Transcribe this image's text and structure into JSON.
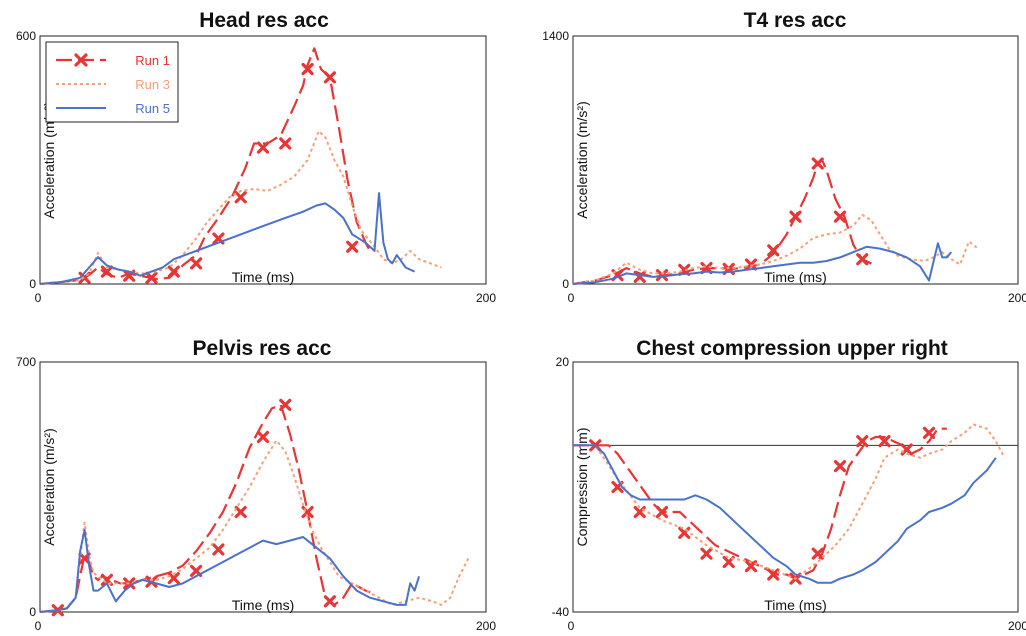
{
  "chart_data": [
    {
      "type": "line",
      "title": "Head res acc",
      "xlabel": "Time (ms)",
      "ylabel": "Acceleration (m/s²)",
      "xlim": [
        0,
        200
      ],
      "ylim": [
        0,
        600
      ],
      "x_ticks": [
        "0",
        "200"
      ],
      "y_ticks": [
        "0",
        "600"
      ],
      "legend": {
        "position": "top-left",
        "entries": [
          "Run 1",
          "Run 3",
          "Run 5"
        ]
      },
      "series": [
        {
          "name": "Run 1",
          "color": "#e83535",
          "style": "long-dash-markers",
          "x": [
            0,
            10,
            18,
            22,
            26,
            30,
            35,
            40,
            45,
            52,
            58,
            64,
            70,
            74,
            80,
            86,
            92,
            96,
            102,
            108,
            114,
            118,
            120,
            123,
            126,
            130,
            134,
            138,
            142,
            146,
            148
          ],
          "y": [
            0,
            5,
            10,
            22,
            40,
            24,
            15,
            25,
            20,
            12,
            15,
            45,
            70,
            115,
            160,
            210,
            280,
            340,
            340,
            360,
            430,
            480,
            530,
            570,
            520,
            500,
            380,
            250,
            150,
            100,
            80
          ],
          "markers_x": [
            20,
            30,
            40,
            50,
            60,
            70,
            80,
            90,
            100,
            110,
            120,
            130,
            140
          ],
          "markers_y": [
            15,
            30,
            20,
            15,
            30,
            50,
            110,
            210,
            330,
            340,
            520,
            500,
            90
          ]
        },
        {
          "name": "Run 3",
          "color": "#f4a07a",
          "style": "dotted",
          "x": [
            0,
            10,
            18,
            22,
            26,
            30,
            35,
            40,
            45,
            52,
            58,
            64,
            70,
            75,
            80,
            85,
            90,
            96,
            102,
            108,
            114,
            120,
            125,
            128,
            132,
            136,
            140,
            144,
            150,
            154,
            158,
            162,
            166,
            170,
            175,
            180
          ],
          "y": [
            0,
            5,
            10,
            25,
            75,
            40,
            35,
            30,
            25,
            30,
            40,
            70,
            110,
            150,
            180,
            210,
            225,
            230,
            225,
            240,
            260,
            300,
            370,
            355,
            300,
            260,
            190,
            130,
            90,
            60,
            50,
            60,
            80,
            60,
            50,
            40
          ],
          "markers_x": [],
          "markers_y": []
        },
        {
          "name": "Run 5",
          "color": "#4a72c8",
          "style": "solid",
          "x": [
            0,
            10,
            18,
            22,
            26,
            30,
            35,
            40,
            45,
            50,
            55,
            60,
            65,
            70,
            80,
            90,
            100,
            110,
            118,
            124,
            128,
            132,
            136,
            140,
            146,
            150,
            152,
            154,
            156,
            158,
            160,
            164,
            168
          ],
          "y": [
            0,
            5,
            15,
            40,
            65,
            45,
            35,
            30,
            20,
            30,
            40,
            60,
            70,
            80,
            100,
            120,
            140,
            160,
            175,
            190,
            195,
            180,
            160,
            120,
            100,
            80,
            220,
            100,
            60,
            50,
            70,
            40,
            30
          ],
          "markers_x": [],
          "markers_y": []
        }
      ]
    },
    {
      "type": "line",
      "title": "T4 res acc",
      "xlabel": "Time (ms)",
      "ylabel": "Acceleration (m/s²)",
      "xlim": [
        0,
        200
      ],
      "ylim": [
        0,
        1400
      ],
      "x_ticks": [
        "0",
        "200"
      ],
      "y_ticks": [
        "0",
        "1400"
      ],
      "series": [
        {
          "name": "Run 1",
          "color": "#e83535",
          "style": "long-dash-markers",
          "x": [
            0,
            10,
            18,
            24,
            30,
            36,
            42,
            48,
            54,
            60,
            66,
            72,
            78,
            84,
            90,
            96,
            100,
            104,
            108,
            110,
            112,
            114,
            118,
            122,
            126,
            130,
            135
          ],
          "y": [
            0,
            20,
            50,
            90,
            60,
            40,
            50,
            60,
            80,
            90,
            90,
            85,
            95,
            110,
            170,
            280,
            380,
            480,
            600,
            680,
            700,
            640,
            480,
            380,
            220,
            140,
            110
          ],
          "markers_x": [
            20,
            30,
            40,
            50,
            60,
            70,
            80,
            90,
            100,
            110,
            120,
            130
          ],
          "markers_y": [
            50,
            40,
            50,
            80,
            90,
            85,
            110,
            190,
            380,
            680,
            380,
            140
          ]
        },
        {
          "name": "Run 3",
          "color": "#f4a07a",
          "style": "dotted",
          "x": [
            0,
            10,
            18,
            24,
            30,
            36,
            42,
            48,
            54,
            60,
            66,
            72,
            78,
            84,
            90,
            96,
            102,
            108,
            114,
            120,
            126,
            130,
            134,
            138,
            142,
            146,
            152,
            158,
            162,
            166,
            170,
            174,
            178,
            182
          ],
          "y": [
            0,
            20,
            60,
            120,
            80,
            60,
            60,
            70,
            90,
            100,
            90,
            90,
            100,
            110,
            130,
            160,
            200,
            260,
            280,
            290,
            330,
            390,
            360,
            280,
            200,
            160,
            140,
            130,
            150,
            180,
            140,
            110,
            240,
            200
          ],
          "markers_x": [],
          "markers_y": []
        },
        {
          "name": "Run 5",
          "color": "#4a72c8",
          "style": "solid",
          "x": [
            0,
            10,
            18,
            24,
            30,
            36,
            42,
            48,
            54,
            60,
            66,
            72,
            78,
            84,
            90,
            96,
            102,
            108,
            114,
            120,
            126,
            132,
            138,
            144,
            150,
            156,
            160,
            164,
            166,
            168,
            170
          ],
          "y": [
            0,
            10,
            30,
            60,
            50,
            40,
            45,
            55,
            60,
            70,
            65,
            70,
            80,
            90,
            100,
            110,
            120,
            120,
            130,
            150,
            180,
            210,
            200,
            180,
            150,
            100,
            20,
            230,
            150,
            150,
            180
          ],
          "markers_x": [],
          "markers_y": []
        }
      ]
    },
    {
      "type": "line",
      "title": "Pelvis res acc",
      "xlabel": "Time (ms)",
      "ylabel": "Acceleration (m/s²)",
      "xlim": [
        0,
        200
      ],
      "ylim": [
        0,
        700
      ],
      "x_ticks": [
        "0",
        "200"
      ],
      "y_ticks": [
        "0",
        "700"
      ],
      "series": [
        {
          "name": "Run 1",
          "color": "#e83535",
          "style": "long-dash-markers",
          "x": [
            0,
            8,
            12,
            16,
            18,
            20,
            22,
            24,
            26,
            28,
            32,
            36,
            40,
            46,
            52,
            58,
            64,
            70,
            76,
            82,
            88,
            94,
            100,
            104,
            108,
            112,
            116,
            120,
            124,
            128,
            132,
            136,
            140,
            146,
            150
          ],
          "y": [
            0,
            5,
            10,
            40,
            100,
            160,
            140,
            100,
            90,
            100,
            90,
            80,
            80,
            90,
            100,
            110,
            130,
            170,
            220,
            280,
            360,
            460,
            530,
            570,
            580,
            500,
            400,
            280,
            150,
            40,
            20,
            40,
            80,
            60,
            50
          ],
          "markers_x": [
            8,
            20,
            30,
            40,
            50,
            60,
            70,
            80,
            90,
            100,
            110,
            120,
            130
          ],
          "markers_y": [
            5,
            150,
            90,
            80,
            85,
            95,
            115,
            175,
            280,
            490,
            580,
            280,
            30
          ]
        },
        {
          "name": "Run 3",
          "color": "#f4a07a",
          "style": "dotted",
          "x": [
            0,
            8,
            12,
            16,
            18,
            20,
            22,
            24,
            26,
            30,
            34,
            40,
            46,
            52,
            58,
            64,
            70,
            76,
            82,
            88,
            94,
            100,
            106,
            110,
            114,
            118,
            122,
            126,
            130,
            134,
            140,
            146,
            152,
            158,
            164,
            170,
            176,
            180,
            184,
            188,
            192
          ],
          "y": [
            0,
            5,
            10,
            40,
            150,
            250,
            160,
            110,
            100,
            80,
            80,
            80,
            90,
            90,
            100,
            120,
            150,
            180,
            230,
            290,
            350,
            420,
            480,
            450,
            380,
            300,
            230,
            180,
            140,
            100,
            80,
            60,
            40,
            20,
            30,
            40,
            30,
            20,
            40,
            100,
            150
          ],
          "markers_x": [],
          "markers_y": []
        },
        {
          "name": "Run 5",
          "color": "#4a72c8",
          "style": "solid",
          "x": [
            0,
            8,
            12,
            16,
            18,
            20,
            22,
            24,
            26,
            30,
            34,
            38,
            42,
            46,
            52,
            58,
            64,
            70,
            76,
            82,
            88,
            94,
            100,
            106,
            112,
            118,
            124,
            130,
            136,
            142,
            148,
            154,
            160,
            164,
            166,
            168,
            170
          ],
          "y": [
            0,
            5,
            10,
            40,
            170,
            230,
            130,
            60,
            60,
            80,
            30,
            60,
            80,
            90,
            80,
            70,
            80,
            100,
            120,
            140,
            160,
            180,
            200,
            190,
            200,
            210,
            180,
            150,
            100,
            60,
            40,
            30,
            20,
            20,
            80,
            60,
            100
          ],
          "markers_x": [],
          "markers_y": []
        }
      ]
    },
    {
      "type": "line",
      "title": "Chest compression upper right",
      "xlabel": "Time (ms)",
      "ylabel": "Compression (mm)",
      "xlim": [
        0,
        200
      ],
      "ylim": [
        -40,
        20
      ],
      "x_ticks": [
        "0",
        "200"
      ],
      "y_ticks": [
        "-40",
        "20"
      ],
      "reference_line_y": 0,
      "series": [
        {
          "name": "Run 1",
          "color": "#e83535",
          "style": "long-dash-markers",
          "x": [
            0,
            4,
            8,
            12,
            16,
            20,
            24,
            28,
            32,
            36,
            40,
            44,
            48,
            52,
            56,
            60,
            64,
            68,
            72,
            76,
            80,
            84,
            88,
            92,
            96,
            100,
            104,
            108,
            112,
            116,
            120,
            124,
            128,
            132,
            136,
            140,
            144,
            148,
            152,
            156,
            160,
            164,
            168
          ],
          "y": [
            0,
            0,
            0,
            0,
            0,
            -2,
            -5,
            -8,
            -11,
            -14,
            -16,
            -16,
            -16,
            -18,
            -20,
            -22,
            -24,
            -25,
            -26,
            -27,
            -28,
            -29,
            -30,
            -31,
            -31,
            -32,
            -31,
            -30,
            -26,
            -20,
            -12,
            -5,
            -2,
            1,
            2,
            2,
            1,
            0,
            -2,
            -1,
            1,
            4,
            4
          ],
          "markers_x": [
            10,
            20,
            30,
            40,
            50,
            60,
            70,
            80,
            90,
            100,
            110,
            120,
            130,
            140,
            150,
            160
          ],
          "markers_y": [
            0,
            -10,
            -16,
            -16,
            -21,
            -26,
            -28,
            -29,
            -31,
            -32,
            -26,
            -5,
            1,
            1,
            -1,
            3
          ]
        },
        {
          "name": "Run 3",
          "color": "#f4a07a",
          "style": "dotted",
          "x": [
            0,
            10,
            20,
            30,
            40,
            50,
            60,
            70,
            80,
            90,
            100,
            110,
            118,
            124,
            130,
            136,
            140,
            146,
            150,
            156,
            160,
            166,
            170,
            176,
            180,
            186,
            190,
            194
          ],
          "y": [
            0,
            0,
            -8,
            -15,
            -18,
            -20,
            -24,
            -27,
            -28,
            -30,
            -32,
            -28,
            -24,
            -20,
            -14,
            -8,
            -3,
            -1,
            -2,
            -3,
            -2,
            -1,
            1,
            3,
            5,
            4,
            1,
            -3
          ],
          "markers_x": [],
          "markers_y": []
        },
        {
          "name": "Run 5",
          "color": "#4a72c8",
          "style": "solid",
          "x": [
            0,
            10,
            14,
            18,
            22,
            26,
            30,
            40,
            50,
            55,
            60,
            66,
            70,
            76,
            80,
            86,
            90,
            96,
            100,
            106,
            110,
            116,
            120,
            126,
            130,
            136,
            140,
            146,
            150,
            156,
            160,
            166,
            170,
            176,
            180,
            186,
            190
          ],
          "y": [
            0,
            0,
            -2,
            -6,
            -10,
            -12,
            -13,
            -13,
            -13,
            -12,
            -13,
            -15,
            -17,
            -20,
            -22,
            -25,
            -27,
            -29,
            -31,
            -32,
            -33,
            -33,
            -32,
            -31,
            -30,
            -28,
            -26,
            -23,
            -20,
            -18,
            -16,
            -15,
            -14,
            -12,
            -9,
            -6,
            -3
          ]
        }
      ]
    }
  ]
}
